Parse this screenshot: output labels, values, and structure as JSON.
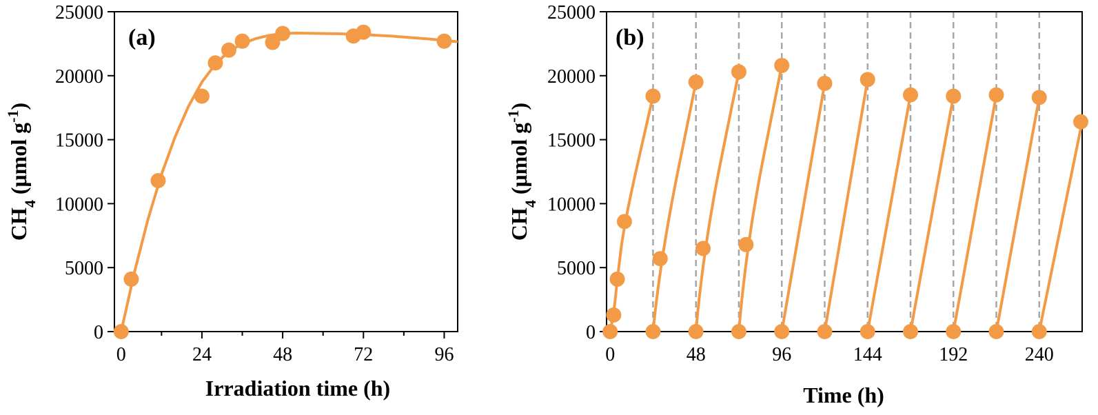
{
  "chart_data": [
    {
      "type": "scatter",
      "panel_label": "(a)",
      "xlabel": "Irradiation time (h)",
      "ylabel": {
        "main": "CH",
        "sub": "4",
        "unit_pre": " (μmol g",
        "sup": "-1",
        "unit_post": ")"
      },
      "xlim": [
        -2,
        100
      ],
      "ylim": [
        0,
        25000
      ],
      "xticks": [
        0,
        24,
        48,
        72,
        96
      ],
      "yticks": [
        0,
        5000,
        10000,
        15000,
        20000,
        25000
      ],
      "grid": false,
      "legend": "none",
      "color": "#F39A47",
      "series": [
        {
          "x": [
            0,
            3,
            11,
            24,
            28,
            32,
            36,
            45,
            48,
            69,
            72,
            96
          ],
          "y": [
            0,
            4100,
            11800,
            18400,
            21000,
            22000,
            22700,
            22600,
            23300,
            23100,
            23400,
            22700
          ]
        }
      ],
      "fit_curve": {
        "x": [
          0,
          4,
          8,
          12,
          16,
          20,
          24,
          28,
          32,
          36,
          40,
          44,
          48,
          52,
          56,
          60,
          64,
          68,
          72,
          76,
          80,
          84,
          88,
          92,
          96,
          100
        ],
        "y": [
          0,
          4700,
          8800,
          12300,
          15200,
          17600,
          19500,
          20900,
          21900,
          22500,
          22900,
          23150,
          23300,
          23330,
          23320,
          23300,
          23280,
          23250,
          23220,
          23160,
          23100,
          23020,
          22940,
          22860,
          22760,
          22650
        ]
      }
    },
    {
      "type": "scatter",
      "panel_label": "(b)",
      "xlabel": "Time (h)",
      "ylabel": {
        "main": "CH",
        "sub": "4",
        "unit_pre": " (μmol g",
        "sup": "-1",
        "unit_post": ")"
      },
      "xlim": [
        -2,
        264
      ],
      "ylim": [
        0,
        25000
      ],
      "xticks": [
        0,
        48,
        96,
        144,
        192,
        240
      ],
      "yticks": [
        0,
        5000,
        10000,
        15000,
        20000,
        25000
      ],
      "grid": false,
      "legend": "none",
      "color": "#F39A47",
      "cycle_boundaries": [
        24,
        48,
        72,
        96,
        120,
        144,
        168,
        192,
        216,
        240
      ],
      "cycles": [
        {
          "x": [
            0,
            2,
            4,
            8,
            24
          ],
          "y": [
            0,
            1300,
            4100,
            8600,
            18400
          ]
        },
        {
          "x": [
            24,
            28,
            48
          ],
          "y": [
            0,
            5700,
            19500
          ]
        },
        {
          "x": [
            48,
            52,
            72
          ],
          "y": [
            0,
            6500,
            20300
          ]
        },
        {
          "x": [
            72,
            76,
            96
          ],
          "y": [
            0,
            6800,
            20800
          ]
        },
        {
          "x": [
            96,
            120
          ],
          "y": [
            0,
            19400
          ]
        },
        {
          "x": [
            120,
            144
          ],
          "y": [
            0,
            19700
          ]
        },
        {
          "x": [
            144,
            168
          ],
          "y": [
            0,
            18500
          ]
        },
        {
          "x": [
            168,
            192
          ],
          "y": [
            0,
            18400
          ]
        },
        {
          "x": [
            192,
            216
          ],
          "y": [
            0,
            18500
          ]
        },
        {
          "x": [
            216,
            240
          ],
          "y": [
            0,
            18300
          ]
        },
        {
          "x": [
            240,
            264
          ],
          "y": [
            0,
            16400
          ]
        }
      ]
    }
  ]
}
